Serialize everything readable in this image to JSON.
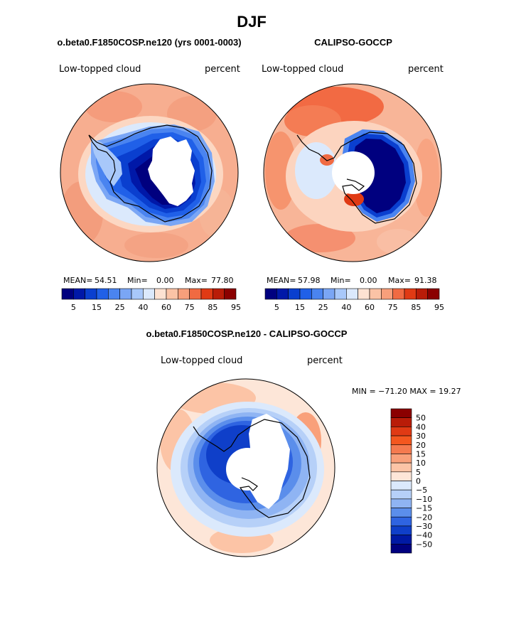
{
  "page": {
    "title": "DJF"
  },
  "panels": [
    {
      "title": "o.beta0.F1850COSP.ne120 (yrs 0001-0003)",
      "left_label": "Low-topped cloud",
      "right_label": "percent",
      "stats": {
        "mean_label": "MEAN=",
        "mean": "54.51",
        "min_label": "Min=",
        "min": "0.00",
        "max_label": "Max=",
        "max": "77.80"
      },
      "colorbar_ticks": [
        "5",
        "15",
        "25",
        "40",
        "60",
        "75",
        "85",
        "95"
      ]
    },
    {
      "title": "CALIPSO-GOCCP",
      "left_label": "Low-topped cloud",
      "right_label": "percent",
      "stats": {
        "mean_label": "MEAN=",
        "mean": "57.98",
        "min_label": "Min=",
        "min": "0.00",
        "max_label": "Max=",
        "max": "91.38"
      },
      "colorbar_ticks": [
        "5",
        "15",
        "25",
        "40",
        "60",
        "75",
        "85",
        "95"
      ]
    },
    {
      "title": "o.beta0.F1850COSP.ne120 - CALIPSO-GOCCP",
      "left_label": "Low-topped cloud",
      "right_label": "percent",
      "minmax_text": "MIN = −71.20 MAX =  19.27",
      "colorbar_ticks": [
        "50",
        "40",
        "30",
        "20",
        "15",
        "10",
        "5",
        "0",
        "−5",
        "−10",
        "−15",
        "−20",
        "−30",
        "−40",
        "−50"
      ]
    }
  ],
  "chart_data": [
    {
      "type": "heatmap",
      "projection": "south polar stereographic",
      "title": "o.beta0.F1850COSP.ne120 (yrs 0001-0003)",
      "variable": "Low-topped cloud",
      "units": "percent",
      "mean": 54.51,
      "min": 0.0,
      "max": 77.8,
      "levels": [
        5,
        10,
        15,
        20,
        25,
        30,
        40,
        50,
        60,
        65,
        75,
        80,
        85,
        90,
        95
      ],
      "colors": [
        "#00007f",
        "#0018a8",
        "#0a3fcf",
        "#2060e8",
        "#4a84f0",
        "#7aa6f5",
        "#a8c8fa",
        "#dbe9fc",
        "#fde2d2",
        "#fbc3a6",
        "#f79f7b",
        "#f06a42",
        "#e03a14",
        "#b91c08",
        "#8b0000"
      ]
    },
    {
      "type": "heatmap",
      "projection": "south polar stereographic",
      "title": "CALIPSO-GOCCP",
      "variable": "Low-topped cloud",
      "units": "percent",
      "mean": 57.98,
      "min": 0.0,
      "max": 91.38,
      "levels": [
        5,
        10,
        15,
        20,
        25,
        30,
        40,
        50,
        60,
        65,
        75,
        80,
        85,
        90,
        95
      ],
      "colors": [
        "#00007f",
        "#0018a8",
        "#0a3fcf",
        "#2060e8",
        "#4a84f0",
        "#7aa6f5",
        "#a8c8fa",
        "#dbe9fc",
        "#fde2d2",
        "#fbc3a6",
        "#f79f7b",
        "#f06a42",
        "#e03a14",
        "#b91c08",
        "#8b0000"
      ]
    },
    {
      "type": "heatmap",
      "projection": "south polar stereographic",
      "title": "o.beta0.F1850COSP.ne120 - CALIPSO-GOCCP",
      "variable": "Low-topped cloud",
      "units": "percent",
      "min": -71.2,
      "max": 19.27,
      "levels": [
        50,
        40,
        30,
        20,
        15,
        10,
        5,
        0,
        -5,
        -10,
        -15,
        -20,
        -30,
        -40,
        -50
      ],
      "colors": [
        "#8b0000",
        "#b91c08",
        "#e03a14",
        "#f4571f",
        "#f57a4f",
        "#f9a07a",
        "#fcc4a6",
        "#fde6d8",
        "#dbe9fc",
        "#b6d0f8",
        "#8fb4f3",
        "#5b8eeb",
        "#2f64e1",
        "#0f3fc9",
        "#0019a4",
        "#00007f"
      ]
    }
  ]
}
